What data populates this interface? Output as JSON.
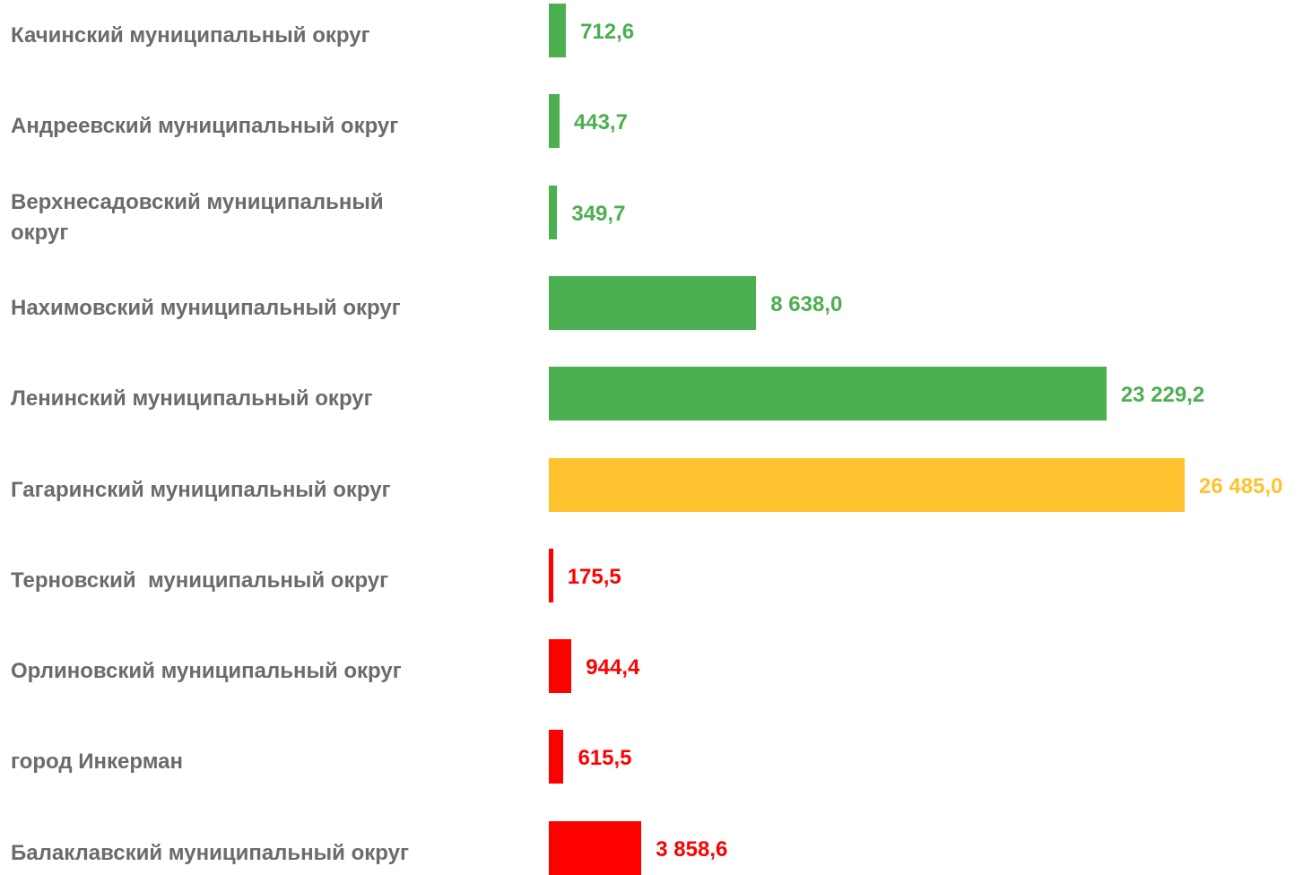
{
  "chart_data": {
    "type": "bar",
    "orientation": "horizontal",
    "categories": [
      "Качинский муниципальный округ",
      "Андреевский муниципальный округ",
      "Верхнесадовский муниципальный округ",
      "Нахимовский муниципальный округ",
      "Ленинский муниципальный округ",
      "Гагаринский муниципальный округ",
      "Терновский  муниципальный округ",
      "Орлиновский муниципальный округ",
      "город Инкерман",
      "Балаклавский муниципальный округ"
    ],
    "values": [
      712.6,
      443.7,
      349.7,
      8638.0,
      23229.2,
      26485.0,
      175.5,
      944.4,
      615.5,
      3858.6
    ],
    "value_labels": [
      "712,6",
      "443,7",
      "349,7",
      "8 638,0",
      "23 229,2",
      "26 485,0",
      "175,5",
      "944,4",
      "615,5",
      "3 858,6"
    ],
    "colors": [
      "#4caf50",
      "#4caf50",
      "#4caf50",
      "#4caf50",
      "#4caf50",
      "#fec22f",
      "#ff0000",
      "#ff0000",
      "#ff0000",
      "#ff0000"
    ]
  }
}
